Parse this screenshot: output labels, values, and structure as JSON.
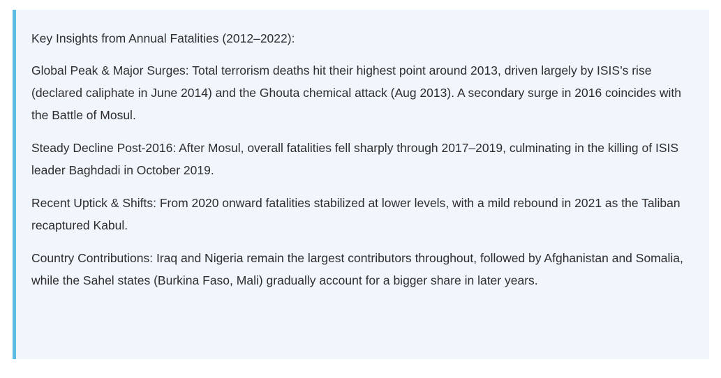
{
  "insights": {
    "heading": "Key Insights from Annual Fatalities (2012–2022):",
    "paragraphs": [
      "Global Peak & Major Surges: Total terrorism deaths hit their highest point around 2013, driven largely by ISIS’s rise (declared caliphate in June 2014) and the Ghouta chemical attack (Aug 2013). A secondary surge in 2016 coincides with the Battle of Mosul.",
      "Steady Decline Post-2016: After Mosul, overall fatalities fell sharply through 2017–2019, culminating in the killing of ISIS leader Baghdadi in October 2019.",
      "Recent Uptick & Shifts: From 2020 onward fatalities stabilized at lower levels, with a mild rebound in 2021 as the Taliban recaptured Kabul.",
      "Country Contributions: Iraq and Nigeria remain the largest contributors throughout, followed by Afghanistan and Somalia, while the Sahel states (Burkina Faso, Mali) gradually account for a bigger share in later years."
    ]
  },
  "colors": {
    "accent_border": "#5bbde4",
    "panel_background": "#f1f6fd",
    "text": "#2e2e2e"
  }
}
